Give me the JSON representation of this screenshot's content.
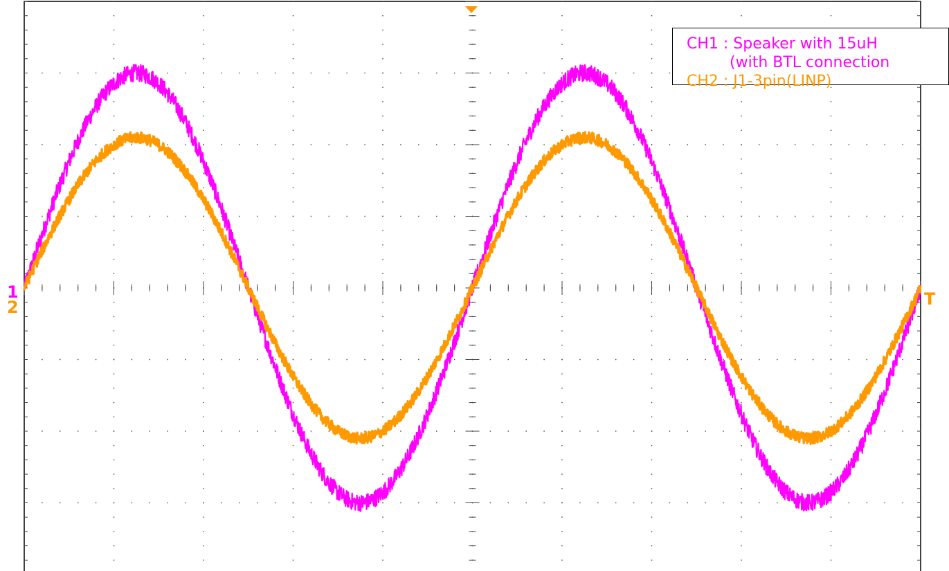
{
  "chart_data": {
    "type": "line",
    "title": "",
    "xlabel": "",
    "ylabel": "",
    "grid": true,
    "divisions": {
      "x": 10,
      "y": 8
    },
    "x": {
      "min": 0,
      "max": 10,
      "unit": "div"
    },
    "y": {
      "min": -4,
      "max": 4,
      "unit": "div"
    },
    "series": [
      {
        "name": "CH1 : Speaker with 15uH",
        "name_line2": "(with BTL connection",
        "color": "#ff00ff",
        "waveform": "sine",
        "amplitude_div": 3.0,
        "periods_shown": 2.0,
        "phase_start": "zero-crossing rising",
        "noise_div": 0.12
      },
      {
        "name": "CH2 : J1-3pin(LINP)",
        "color": "#ff9900",
        "waveform": "sine",
        "amplitude_div": 2.1,
        "periods_shown": 2.0,
        "phase_start": "zero-crossing rising",
        "noise_div": 0.08
      }
    ],
    "legend": "top-right",
    "markers": {
      "left_ch1": "1",
      "left_ch2": "2",
      "right_trigger": "T"
    }
  },
  "colors": {
    "grid": "#404040",
    "background": "#ffffff",
    "trigger": "#ff9900"
  }
}
